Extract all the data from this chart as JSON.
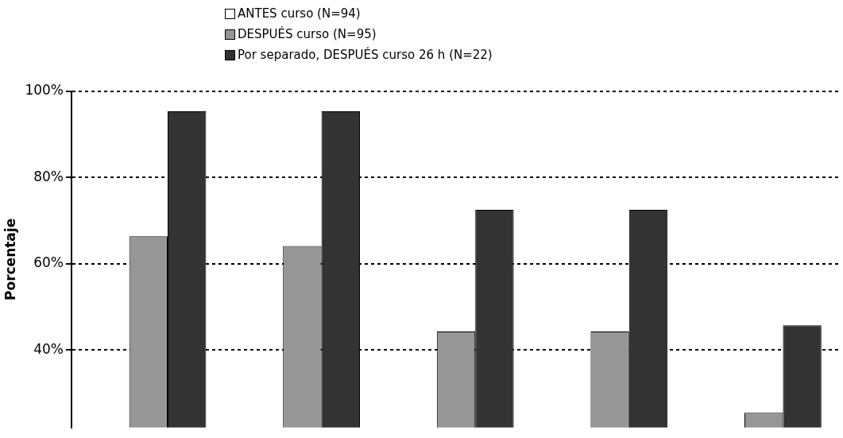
{
  "chart_data": {
    "type": "bar",
    "ylabel": "Porcentaje",
    "categories": [
      null,
      null,
      null,
      null,
      null
    ],
    "series": [
      {
        "name": "ANTES curso (N=94)",
        "color": "#ffffff",
        "values": [
          null,
          null,
          null,
          null,
          null
        ]
      },
      {
        "name": "DESPUÉS curso (N=95)",
        "color": "#969696",
        "values": [
          66.4,
          64.1,
          44.3,
          44.3,
          25.4
        ]
      },
      {
        "name": "Por separado, DESPUÉS curso 26 h (N=22)",
        "color": "#333333",
        "values": [
          95.4,
          95.4,
          72.5,
          72.5,
          45.7
        ]
      }
    ],
    "ylim": [
      22,
      100
    ],
    "yticks": [
      {
        "value": 40,
        "label": "40%"
      },
      {
        "value": 60,
        "label": "60%"
      },
      {
        "value": 80,
        "label": "80%"
      },
      {
        "value": 100,
        "label": "100%"
      }
    ],
    "grid": "y",
    "legend": "top"
  }
}
